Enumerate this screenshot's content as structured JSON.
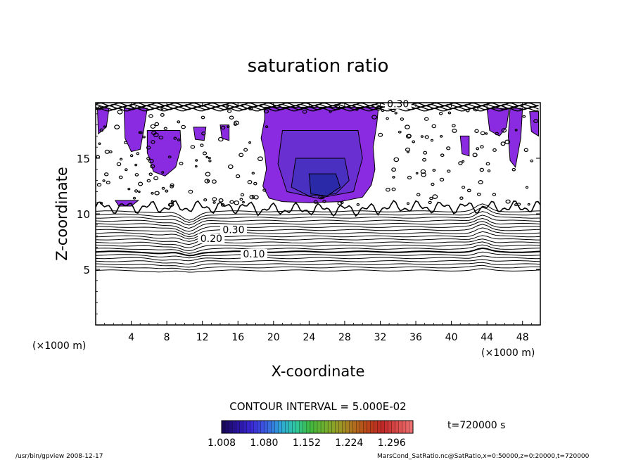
{
  "chart_data": {
    "type": "contour",
    "title": "saturation ratio",
    "xlabel": "X-coordinate",
    "ylabel": "Z-coordinate",
    "x_unit_left": "(×1000 m)",
    "x_unit_right": "(×1000 m)",
    "xlim": [
      0,
      50
    ],
    "ylim": [
      0,
      20
    ],
    "xticks": [
      {
        "value": 4,
        "label": "4"
      },
      {
        "value": 8,
        "label": "8"
      },
      {
        "value": 12,
        "label": "12"
      },
      {
        "value": 16,
        "label": "16"
      },
      {
        "value": 20,
        "label": "20"
      },
      {
        "value": 24,
        "label": "24"
      },
      {
        "value": 28,
        "label": "28"
      },
      {
        "value": 32,
        "label": "32"
      },
      {
        "value": 36,
        "label": "36"
      },
      {
        "value": 40,
        "label": "40"
      },
      {
        "value": 44,
        "label": "44"
      },
      {
        "value": 48,
        "label": "48"
      }
    ],
    "yticks": [
      {
        "value": 5,
        "label": "5"
      },
      {
        "value": 10,
        "label": "10"
      },
      {
        "value": 15,
        "label": "15"
      }
    ],
    "contour_labels": [
      {
        "text": "0.10",
        "x": 17.8,
        "z": 6.2
      },
      {
        "text": "0.20",
        "x": 13.0,
        "z": 7.6
      },
      {
        "text": "0.30",
        "x": 15.5,
        "z": 8.4
      },
      {
        "text": "0.30",
        "x": 34.0,
        "z": 19.7
      }
    ],
    "contour_interval_text": "CONTOUR INTERVAL = 5.000E-02",
    "time_label": "t=720000 s",
    "colorbar": {
      "min": 1.008,
      "max": 1.332,
      "tick_labels": [
        "1.008",
        "1.080",
        "1.152",
        "1.224",
        "1.296"
      ],
      "colors": [
        "#1a0a5c",
        "#2a14a0",
        "#3c2ad8",
        "#3a60e0",
        "#2fa8d8",
        "#2fc8a0",
        "#40b840",
        "#70b030",
        "#9a9a28",
        "#b07020",
        "#b84418",
        "#c02828",
        "#d84848",
        "#ee7070"
      ]
    },
    "fill_levels": {
      "outer": "#8a2be2",
      "mid": "#6a2fd0",
      "inner": "#4a30c0",
      "core": "#2a2aa8"
    }
  },
  "footer": {
    "left": "/usr/bin/gpview  2008-12-17",
    "right": "MarsCond_SatRatio.nc@SatRatio,x=0:50000,z=0:20000,t=720000"
  }
}
